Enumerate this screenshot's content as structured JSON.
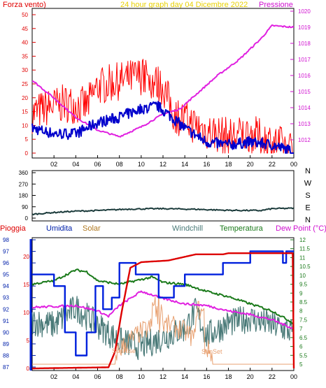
{
  "panel1": {
    "title": "24 hour graph day  04 Dicembre 2022",
    "left_label": "Forza vento)",
    "right_label": "Pressione",
    "y_left_ticks": [
      "50",
      "45",
      "40",
      "35",
      "30",
      "25",
      "20",
      "15",
      "10",
      "5",
      "0"
    ],
    "y_right_ticks": [
      "1020",
      "1019",
      "1018",
      "1017",
      "1016",
      "1015",
      "1014",
      "1013",
      "1012"
    ],
    "x_ticks": [
      "02",
      "04",
      "06",
      "08",
      "10",
      "12",
      "14",
      "16",
      "18",
      "20",
      "22",
      "00"
    ],
    "colors": {
      "gust": "#ff0000",
      "wind": "#0000cc",
      "pressure": "#e020e0",
      "title": "#e8d000"
    }
  },
  "panel2": {
    "y_ticks": [
      "360",
      "270",
      "180",
      "90",
      "0"
    ],
    "compass": [
      "N",
      "W",
      "S",
      "E",
      "N"
    ],
    "x_ticks": [
      "02",
      "04",
      "06",
      "08",
      "10",
      "12",
      "14",
      "16",
      "18",
      "20",
      "22",
      "00"
    ],
    "colors": {
      "dir": "#1a3a3a"
    }
  },
  "panel3": {
    "labels": {
      "pioggia": "Pioggia",
      "umidita": "Umidita",
      "solar": "Solar",
      "windchill": "Windchill",
      "temperatura": "Temperatura",
      "dewpoint": "Dew Point (°C)"
    },
    "y_humidity_ticks": [
      "98",
      "97",
      "96",
      "95",
      "94",
      "93",
      "92",
      "91",
      "90",
      "89",
      "88",
      "87"
    ],
    "y_rain_ticks": [
      "20",
      "15",
      "10",
      "5",
      "0"
    ],
    "y_temp_ticks": [
      "12",
      "11.5",
      "11",
      "10.5",
      "10",
      "9.5",
      "9",
      "8.5",
      "8",
      "7.5",
      "7",
      "6.5",
      "6",
      "5.5",
      "5"
    ],
    "x_ticks": [
      "02",
      "04",
      "06",
      "08",
      "10",
      "12",
      "14",
      "16",
      "18",
      "20",
      "22",
      "00"
    ],
    "annotations": {
      "sunrise": "SunRise",
      "sunset": "SunSet"
    },
    "colors": {
      "rain": "#dd0000",
      "humidity": "#0020dd",
      "solar": "#e8a070",
      "windchill": "#4a7a78",
      "temp": "#1a7a1a",
      "dew": "#e020e0"
    }
  }
}
